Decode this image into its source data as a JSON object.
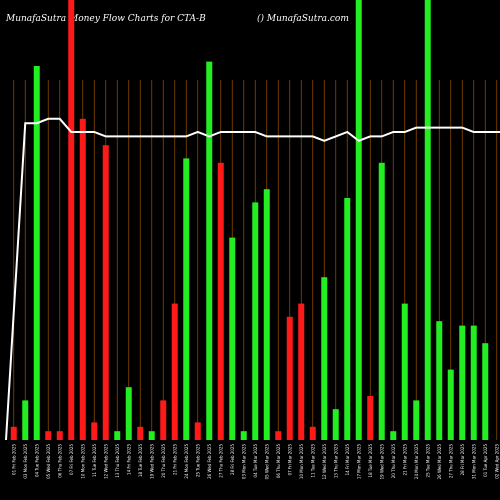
{
  "header": {
    "title": "MunafaSutra  Money Flow  Charts for CTA-B",
    "site": "() MunafaSutra.com"
  },
  "colors": {
    "background": "#000000",
    "gridline": "#8a4a00",
    "up_bar": "#22ee22",
    "down_bar": "#ff1a1a",
    "price_line": "#ffffff",
    "text": "#ffffff"
  },
  "chart_data": {
    "type": "bar",
    "title": "MunafaSutra  Money Flow  Charts for CTA-B",
    "xlabel": "",
    "ylabel": "",
    "ylim": [
      0,
      100
    ],
    "categories": [
      "01 Fri Feb 2025",
      "03 Mon Feb 2025",
      "04 Tue Feb 2025",
      "05 Wed Feb 2025",
      "06 Thu Feb 2025",
      "07 Fri Feb 2025",
      "10 Mon Feb 2025",
      "11 Tue Feb 2025",
      "12 Wed Feb 2025",
      "13 Thu Feb 2025",
      "14 Fri Feb 2025",
      "18 Tue Feb 2025",
      "19 Wed Feb 2025",
      "20 Thu Feb 2025",
      "21 Fri Feb 2025",
      "24 Mon Feb 2025",
      "25 Tue Feb 2025",
      "26 Wed Feb 2025",
      "27 Thu Feb 2025",
      "28 Fri Feb 2025",
      "03 Mon Mar 2025",
      "04 Tue Mar 2025",
      "05 Wed Mar 2025",
      "06 Thu Mar 2025",
      "07 Fri Mar 2025",
      "10 Mon Mar 2025",
      "11 Tue Mar 2025",
      "12 Wed Mar 2025",
      "13 Thu Mar 2025",
      "14 Fri Mar 2025",
      "17 Mon Mar 2025",
      "18 Tue Mar 2025",
      "19 Wed Mar 2025",
      "20 Thu Mar 2025",
      "21 Fri Mar 2025",
      "24 Mon Mar 2025",
      "25 Tue Mar 2025",
      "26 Wed Mar 2025",
      "27 Thu Mar 2025",
      "28 Fri Mar 2025",
      "31 Mon Mar 2025",
      "01 Tue Apr 2025",
      "02 Wed Apr 2025",
      "03 Thu Apr 2025"
    ],
    "series": [
      {
        "values": [
          3,
          9,
          85,
          2,
          2,
          100,
          73,
          4,
          67,
          2,
          12,
          3,
          2,
          9,
          31,
          64,
          4,
          86,
          63,
          46,
          2,
          54,
          57,
          2,
          28,
          31,
          3,
          37,
          7,
          55,
          100,
          10,
          63,
          2,
          31,
          9,
          100,
          27,
          16,
          26,
          26,
          22,
          0,
          0
        ],
        "direction": [
          "down",
          "up",
          "up",
          "down",
          "down",
          "down",
          "down",
          "down",
          "down",
          "up",
          "up",
          "down",
          "up",
          "down",
          "down",
          "up",
          "down",
          "up",
          "down",
          "up",
          "up",
          "up",
          "up",
          "down",
          "down",
          "down",
          "down",
          "up",
          "up",
          "up",
          "up",
          "down",
          "up",
          "up",
          "up",
          "up",
          "up",
          "up",
          "up",
          "up",
          "up",
          "up",
          "up",
          "up"
        ]
      },
      {
        "name": "",
        "type": "line",
        "values": [
          0,
          72,
          72,
          73,
          73,
          70,
          70,
          70,
          69,
          69,
          69,
          69,
          69,
          69,
          69,
          69,
          70,
          69,
          70,
          70,
          70,
          70,
          69,
          69,
          69,
          69,
          69,
          68,
          69,
          70,
          68,
          69,
          69,
          70,
          70,
          71,
          71,
          71,
          71,
          71,
          70,
          70,
          70,
          70
        ]
      }
    ]
  }
}
